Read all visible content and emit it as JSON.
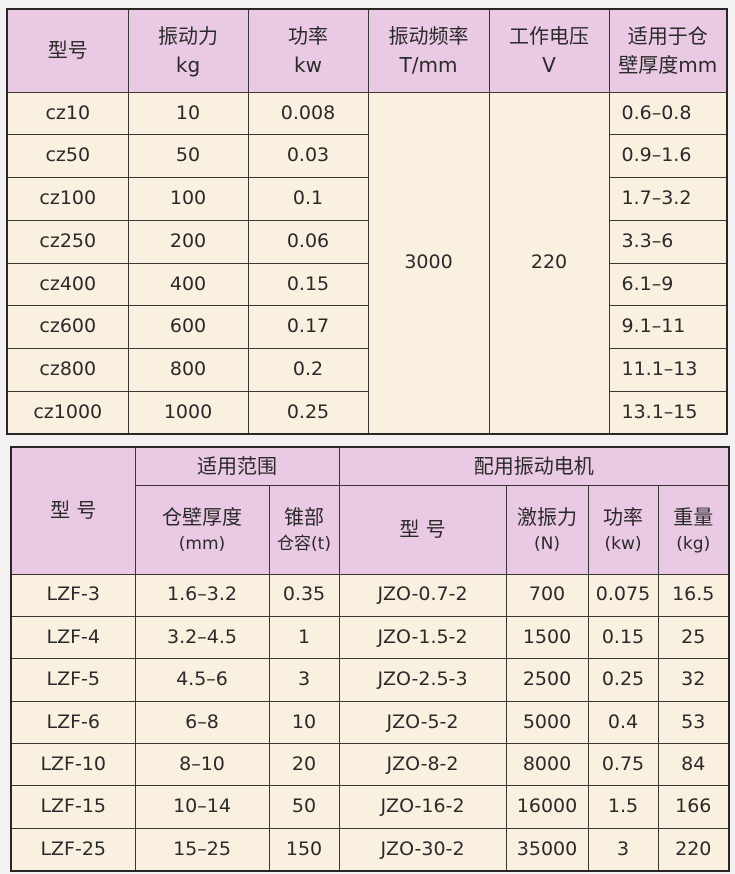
{
  "table1": {
    "headers": [
      {
        "line1": "型号",
        "line2": ""
      },
      {
        "line1": "振动力",
        "line2": "kg"
      },
      {
        "line1": "功率",
        "line2": "kw"
      },
      {
        "line1": "振动频率",
        "line2": "T/mm"
      },
      {
        "line1": "工作电压",
        "line2": "V"
      },
      {
        "line1": "适用于仓",
        "line2": "壁厚度mm"
      }
    ],
    "frequency": "3000",
    "voltage": "220",
    "rows": [
      {
        "model": "cz10",
        "force": "10",
        "power": "0.008",
        "thickness": "0.6–0.8"
      },
      {
        "model": "cz50",
        "force": "50",
        "power": "0.03",
        "thickness": "0.9–1.6"
      },
      {
        "model": "cz100",
        "force": "100",
        "power": "0.1",
        "thickness": "1.7–3.2"
      },
      {
        "model": "cz250",
        "force": "200",
        "power": "0.06",
        "thickness": "3.3–6"
      },
      {
        "model": "cz400",
        "force": "400",
        "power": "0.15",
        "thickness": "6.1–9"
      },
      {
        "model": "cz600",
        "force": "600",
        "power": "0.17",
        "thickness": "9.1–11"
      },
      {
        "model": "cz800",
        "force": "800",
        "power": "0.2",
        "thickness": "11.1–13"
      },
      {
        "model": "cz1000",
        "force": "1000",
        "power": "0.25",
        "thickness": "13.1–15"
      }
    ]
  },
  "table2": {
    "model_header": "型 号",
    "range_header": "适用范围",
    "motor_header": "配用振动电机",
    "sub": {
      "thickness": {
        "line1": "仓壁厚度",
        "line2": "(mm)"
      },
      "capacity": {
        "line1": "锥部",
        "line2": "仓容(t)"
      },
      "motor_model": {
        "line1": "型 号",
        "line2": ""
      },
      "force": {
        "line1": "激振力",
        "line2": "(N)"
      },
      "power": {
        "line1": "功率",
        "line2": "(kw)"
      },
      "weight": {
        "line1": "重量",
        "line2": "(kg)"
      }
    },
    "rows": [
      {
        "model": "LZF-3",
        "thickness": "1.6–3.2",
        "capacity": "0.35",
        "motor": "JZO-0.7-2",
        "force": "700",
        "power": "0.075",
        "weight": "16.5"
      },
      {
        "model": "LZF-4",
        "thickness": "3.2–4.5",
        "capacity": "1",
        "motor": "JZO-1.5-2",
        "force": "1500",
        "power": "0.15",
        "weight": "25"
      },
      {
        "model": "LZF-5",
        "thickness": "4.5–6",
        "capacity": "3",
        "motor": "JZO-2.5-3",
        "force": "2500",
        "power": "0.25",
        "weight": "32"
      },
      {
        "model": "LZF-6",
        "thickness": "6–8",
        "capacity": "10",
        "motor": "JZO-5-2",
        "force": "5000",
        "power": "0.4",
        "weight": "53"
      },
      {
        "model": "LZF-10",
        "thickness": "8–10",
        "capacity": "20",
        "motor": "JZO-8-2",
        "force": "8000",
        "power": "0.75",
        "weight": "84"
      },
      {
        "model": "LZF-15",
        "thickness": "10–14",
        "capacity": "50",
        "motor": "JZO-16-2",
        "force": "16000",
        "power": "1.5",
        "weight": "166"
      },
      {
        "model": "LZF-25",
        "thickness": "15–25",
        "capacity": "150",
        "motor": "JZO-30-2",
        "force": "35000",
        "power": "3",
        "weight": "220"
      }
    ]
  },
  "colors": {
    "header": "#e9c9e3",
    "body": "#faf0e0",
    "border": "#3a3533"
  }
}
